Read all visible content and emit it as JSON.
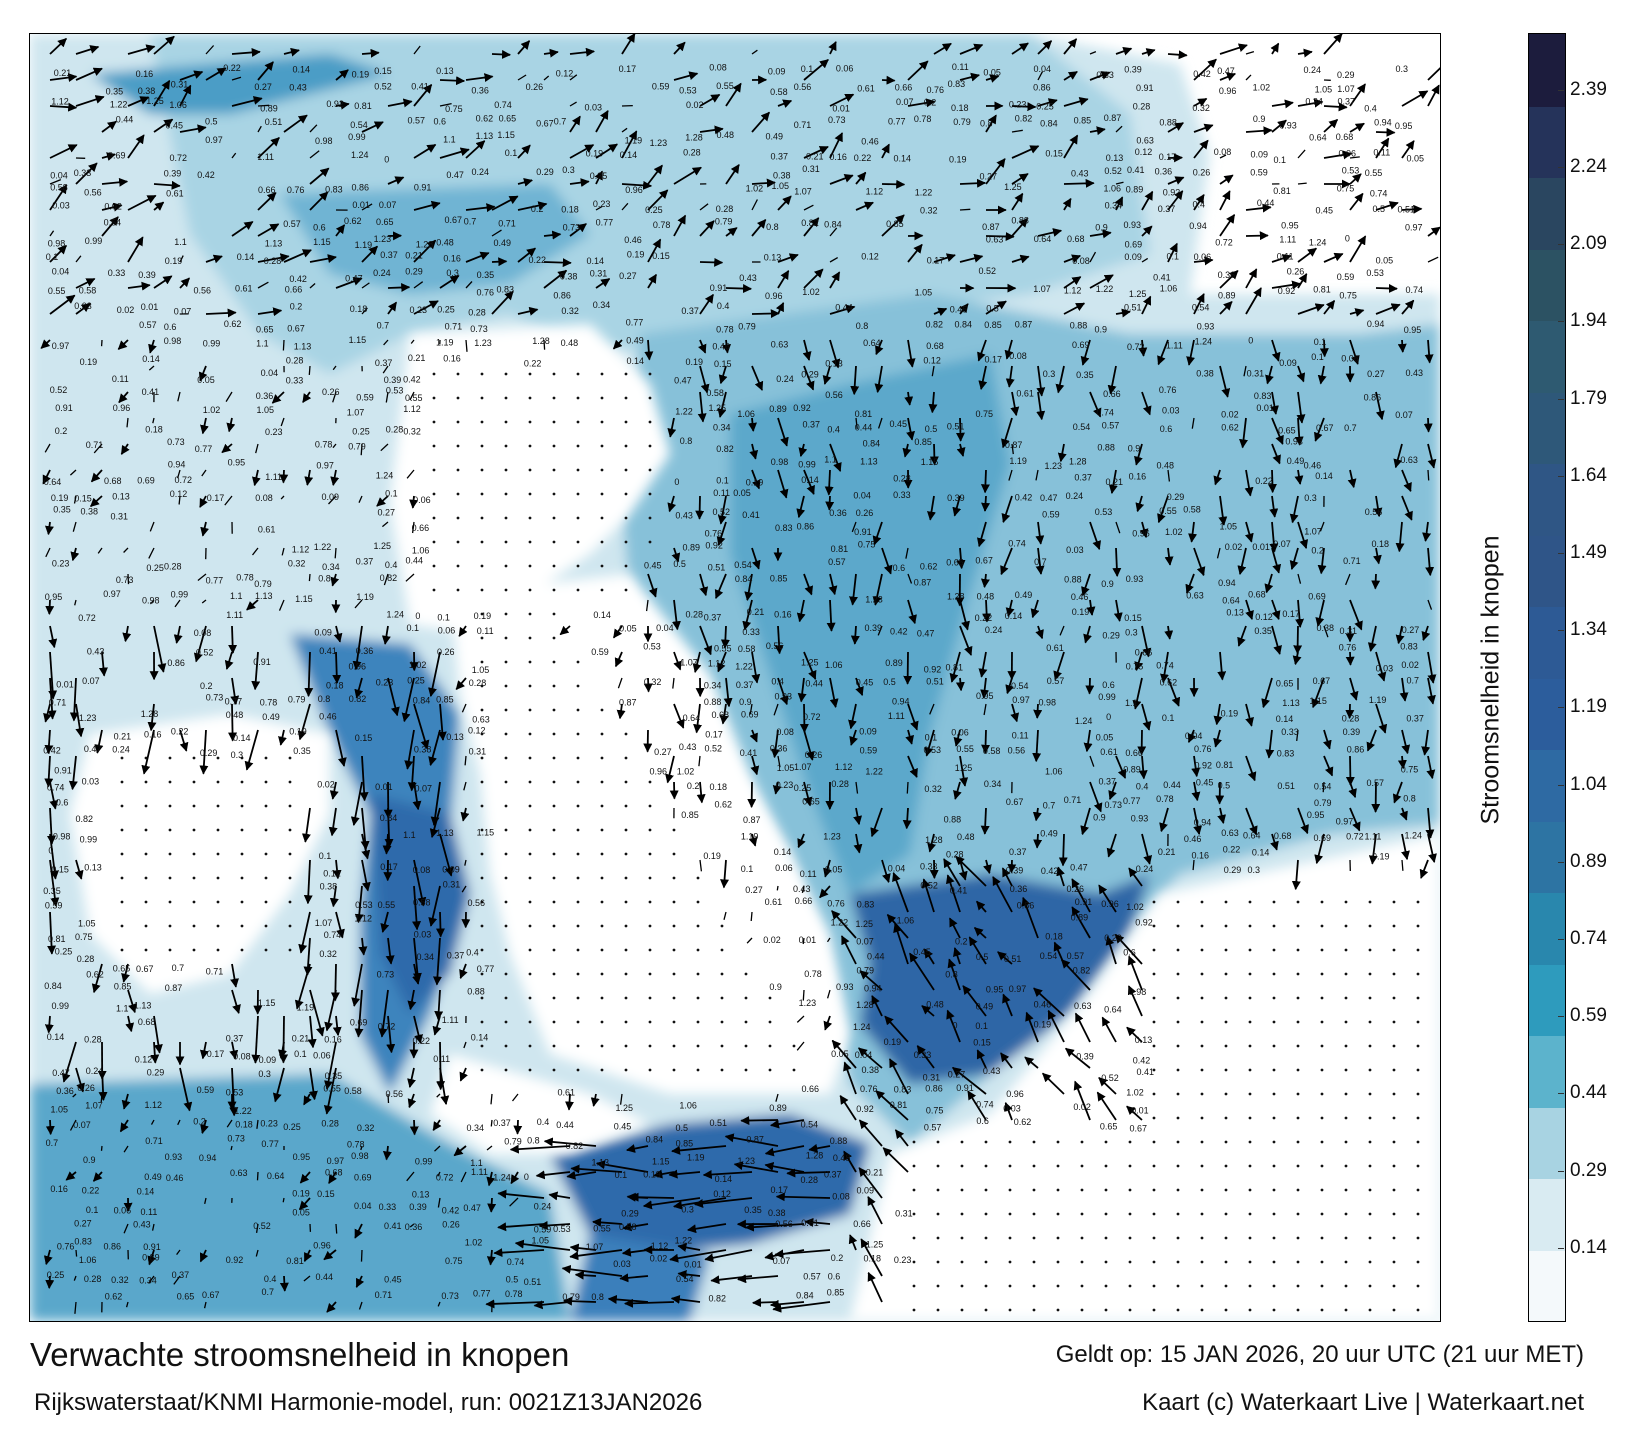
{
  "title": "Verwachte stroomsnelheid in knopen",
  "valid_time": "Geldt op: 15 JAN 2026, 20 uur UTC (21 uur MET)",
  "model_run": "Rijkswaterstaat/KNMI Harmonie-model, run: 0021Z13JAN2026",
  "copyright": "Kaart (c) Waterkaart Live | Waterkaart.net",
  "colorbar": {
    "label": "Stroomsnelheid in knopen",
    "ticks": [
      "0.14",
      "0.29",
      "0.44",
      "0.59",
      "0.74",
      "0.89",
      "1.04",
      "1.19",
      "1.34",
      "1.49",
      "1.64",
      "1.79",
      "1.94",
      "2.09",
      "2.24",
      "2.39"
    ],
    "range": [
      0.0,
      2.5
    ],
    "colors": [
      "#f4f9fb",
      "#d9ebf2",
      "#a8d3e2",
      "#5cb3cc",
      "#2e9bbd",
      "#2987ad",
      "#2d74a3",
      "#2e6aa3",
      "#2c5d9c",
      "#2d5a95",
      "#2f5588",
      "#2f5685",
      "#2e5879",
      "#2e5a71",
      "#2c5263",
      "#2a4660",
      "#25335a",
      "#1c1c3d"
    ]
  },
  "map": {
    "background": "#ffffff",
    "water_colors": {
      "low": "#e9f4f8",
      "mid": "#7bbdd6",
      "high": "#2f74ad",
      "max": "#2a5c9c"
    },
    "arrow_color": "#000000",
    "labels": [
      {
        "t": "0.21"
      },
      {
        "t": "0.16"
      },
      {
        "t": "0.22"
      },
      {
        "t": "0.14"
      },
      {
        "t": "0.19"
      },
      {
        "t": "0.15"
      },
      {
        "t": "0.13"
      },
      {
        "t": "0.12"
      },
      {
        "t": "0.17"
      },
      {
        "t": "0.08"
      },
      {
        "t": "0.09"
      },
      {
        "t": "0.1"
      },
      {
        "t": "0.06"
      },
      {
        "t": "0.11"
      },
      {
        "t": "0.05"
      },
      {
        "t": "0.04"
      },
      {
        "t": "0.33"
      },
      {
        "t": "0.39"
      },
      {
        "t": "0.42"
      },
      {
        "t": "0.47"
      },
      {
        "t": "0.24"
      },
      {
        "t": "0.29"
      },
      {
        "t": "0.3"
      },
      {
        "t": "0.35"
      },
      {
        "t": "0.38"
      },
      {
        "t": "0.31"
      },
      {
        "t": "0.27"
      },
      {
        "t": "0.43"
      },
      {
        "t": "0.52"
      },
      {
        "t": "0.41"
      },
      {
        "t": "0.36"
      },
      {
        "t": "0.26"
      },
      {
        "t": "0.59"
      },
      {
        "t": "0.53"
      },
      {
        "t": "0.55"
      },
      {
        "t": "0.58"
      },
      {
        "t": "0.56"
      },
      {
        "t": "0.61"
      },
      {
        "t": "0.66"
      },
      {
        "t": "0.76"
      },
      {
        "t": "0.83"
      },
      {
        "t": "0.86"
      },
      {
        "t": "0.91"
      },
      {
        "t": "0.96"
      },
      {
        "t": "1.02"
      },
      {
        "t": "1.05"
      },
      {
        "t": "1.07"
      },
      {
        "t": "1.12"
      },
      {
        "t": "1.22"
      },
      {
        "t": "1.25"
      },
      {
        "t": "1.06"
      },
      {
        "t": "0.89"
      },
      {
        "t": "0.92"
      },
      {
        "t": "0.81"
      },
      {
        "t": "0.75"
      },
      {
        "t": "0.74"
      },
      {
        "t": "0.03"
      },
      {
        "t": "0.02"
      },
      {
        "t": "0.01"
      },
      {
        "t": "0.07"
      },
      {
        "t": "0.2"
      },
      {
        "t": "0.18"
      },
      {
        "t": "0.23"
      },
      {
        "t": "0.25"
      },
      {
        "t": "0.28"
      },
      {
        "t": "0.32"
      },
      {
        "t": "0.34"
      },
      {
        "t": "0.37"
      },
      {
        "t": "0.4"
      },
      {
        "t": "0.44"
      },
      {
        "t": "0.45"
      },
      {
        "t": "0.5"
      },
      {
        "t": "0.51"
      },
      {
        "t": "0.54"
      },
      {
        "t": "0.57"
      },
      {
        "t": "0.6"
      },
      {
        "t": "0.62"
      },
      {
        "t": "0.65"
      },
      {
        "t": "0.67"
      },
      {
        "t": "0.7"
      },
      {
        "t": "0.71"
      },
      {
        "t": "0.73"
      },
      {
        "t": "0.77"
      },
      {
        "t": "0.78"
      },
      {
        "t": "0.79"
      },
      {
        "t": "0.8"
      },
      {
        "t": "0.82"
      },
      {
        "t": "0.84"
      },
      {
        "t": "0.85"
      },
      {
        "t": "0.87"
      },
      {
        "t": "0.88"
      },
      {
        "t": "0.9"
      },
      {
        "t": "0.93"
      },
      {
        "t": "0.94"
      },
      {
        "t": "0.95"
      },
      {
        "t": "0.97"
      },
      {
        "t": "0.98"
      },
      {
        "t": "0.99"
      },
      {
        "t": "1.1"
      },
      {
        "t": "1.13"
      },
      {
        "t": "1.15"
      },
      {
        "t": "1.19"
      },
      {
        "t": "1.23"
      },
      {
        "t": "1.28"
      },
      {
        "t": "0.48"
      },
      {
        "t": "0.49"
      },
      {
        "t": "0.46"
      },
      {
        "t": "0.63"
      },
      {
        "t": "0.64"
      },
      {
        "t": "0.68"
      },
      {
        "t": "0.69"
      },
      {
        "t": "0.72"
      },
      {
        "t": "1.11"
      },
      {
        "t": "1.24"
      },
      {
        "t": "0"
      },
      {
        "t": "0.1"
      },
      {
        "t": "0.19"
      },
      {
        "t": "0.14"
      },
      {
        "t": "0.28"
      },
      {
        "t": "0.37"
      }
    ]
  }
}
